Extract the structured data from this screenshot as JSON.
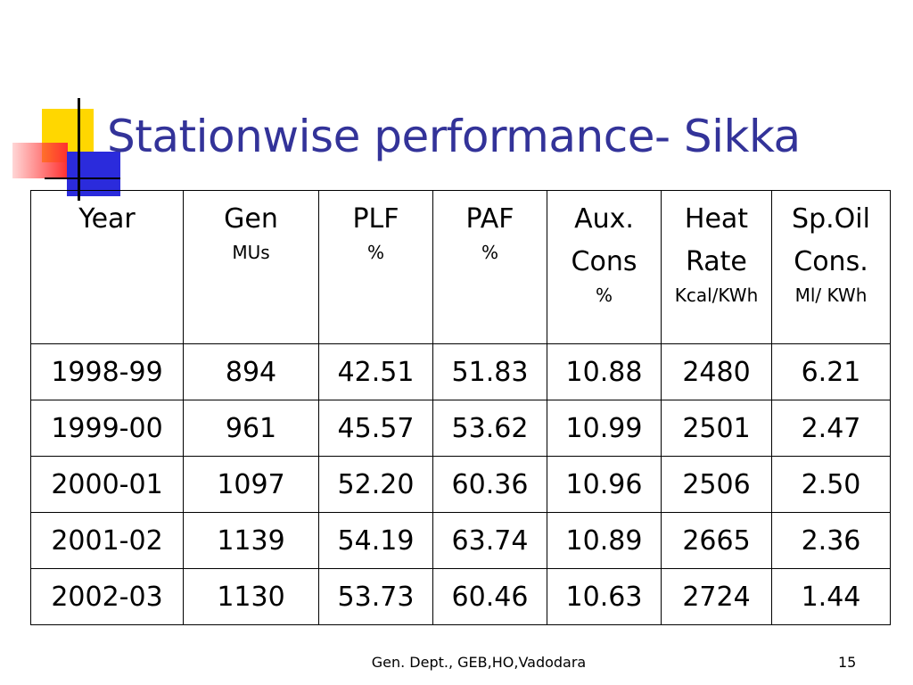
{
  "title": "Stationwise performance- Sikka",
  "table": {
    "header": [
      {
        "main": "Year"
      },
      {
        "main": "Gen",
        "sub": "MUs"
      },
      {
        "main": "PLF",
        "sub": "%"
      },
      {
        "main": "PAF",
        "sub": "%"
      },
      {
        "main": "Aux. Cons",
        "sub": "%"
      },
      {
        "main": "Heat Rate",
        "sub": "Kcal/KWh"
      },
      {
        "main": "Sp.Oil Cons.",
        "sub": "Ml/ KWh"
      }
    ],
    "rows": [
      [
        "1998-99",
        "894",
        "42.51",
        "51.83",
        "10.88",
        "2480",
        "6.21"
      ],
      [
        "1999-00",
        "961",
        "45.57",
        "53.62",
        "10.99",
        "2501",
        "2.47"
      ],
      [
        "2000-01",
        "1097",
        "52.20",
        "60.36",
        "10.96",
        "2506",
        "2.50"
      ],
      [
        "2001-02",
        "1139",
        "54.19",
        "63.74",
        "10.89",
        "2665",
        "2.36"
      ],
      [
        "2002-03",
        "1130",
        "53.73",
        "60.46",
        "10.63",
        "2724",
        "1.44"
      ]
    ]
  },
  "footer": "Gen. Dept., GEB,HO,Vadodara",
  "page_number": "15"
}
